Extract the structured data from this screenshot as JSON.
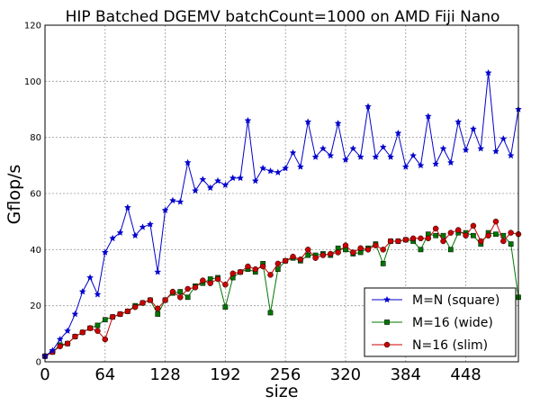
{
  "chart_data": {
    "type": "line",
    "title": "HIP Batched DGEMV batchCount=1000 on AMD Fiji Nano",
    "xlabel": "size",
    "ylabel": "Gflop/s",
    "xlim": [
      0,
      504
    ],
    "ylim": [
      0,
      120
    ],
    "xticks": [
      0,
      64,
      128,
      192,
      256,
      320,
      384,
      448
    ],
    "yticks": [
      0,
      20,
      40,
      60,
      80,
      100,
      120
    ],
    "grid": true,
    "legend_position": "lower-right",
    "x": [
      0,
      8,
      16,
      24,
      32,
      40,
      48,
      56,
      64,
      72,
      80,
      88,
      96,
      104,
      112,
      120,
      128,
      136,
      144,
      152,
      160,
      168,
      176,
      184,
      192,
      200,
      208,
      216,
      224,
      232,
      240,
      248,
      256,
      264,
      272,
      280,
      288,
      296,
      304,
      312,
      320,
      328,
      336,
      344,
      352,
      360,
      368,
      376,
      384,
      392,
      400,
      408,
      416,
      424,
      432,
      440,
      448,
      456,
      464,
      472,
      480,
      488,
      496,
      504
    ],
    "series": [
      {
        "name": "M=N (square)",
        "color": "#0000cc",
        "marker": "star",
        "values": [
          2,
          4,
          8,
          11,
          17,
          25,
          30,
          24,
          39,
          44,
          46,
          55,
          45,
          48,
          49,
          32,
          54,
          57.5,
          57,
          71,
          61,
          65,
          62,
          64.5,
          63,
          65.5,
          65.5,
          86,
          64.5,
          69,
          68,
          67.5,
          69,
          74.5,
          69.5,
          85.5,
          73,
          76,
          73.5,
          85,
          72,
          76,
          73,
          91,
          73,
          76.5,
          73,
          81.5,
          69.5,
          73.5,
          70,
          87.5,
          70.5,
          76,
          71,
          85.5,
          75.5,
          83,
          76,
          103,
          75,
          79.5,
          73.5,
          90
        ]
      },
      {
        "name": "M=16 (wide)",
        "color": "#007700",
        "marker": "square",
        "values": [
          2,
          3.5,
          6,
          6.5,
          9,
          10.5,
          12,
          13,
          15,
          16,
          17,
          18,
          20,
          21,
          22,
          17,
          22,
          24.5,
          25,
          23,
          27,
          28,
          29.5,
          30,
          19.5,
          30,
          32,
          33,
          32,
          35,
          17.5,
          33,
          36,
          37,
          36,
          38,
          38,
          38.5,
          38,
          40.5,
          40,
          38.5,
          39,
          40.5,
          42,
          35,
          43,
          43,
          43.5,
          43,
          40,
          45.5,
          45,
          45,
          40,
          46,
          46,
          45,
          42,
          46,
          45.5,
          45,
          42,
          23
        ]
      },
      {
        "name": "N=16 (slim)",
        "color": "#cc0000",
        "marker": "circle",
        "values": [
          2,
          3.5,
          5.5,
          6.5,
          9,
          10.5,
          12,
          11,
          8,
          16,
          17,
          18,
          19.5,
          21,
          22,
          19,
          22,
          25,
          23,
          26,
          26.5,
          29,
          28,
          29.5,
          27.5,
          31.5,
          32,
          34,
          33,
          34,
          31,
          35,
          36,
          37.5,
          36.5,
          40,
          37,
          38,
          38.5,
          39,
          41.5,
          39,
          40.5,
          40,
          41.5,
          40,
          43,
          43,
          43.5,
          44,
          44,
          44,
          47.5,
          43,
          46,
          47,
          45,
          48.5,
          43,
          45,
          50,
          43,
          46,
          45.5
        ]
      }
    ]
  }
}
